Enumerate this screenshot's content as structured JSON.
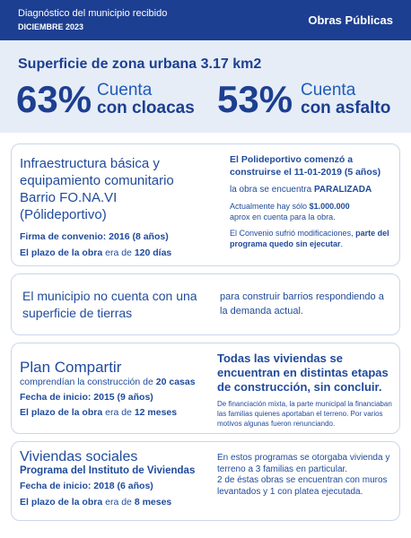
{
  "header": {
    "title": "Diagnóstico del municipio recibido",
    "date": "DICIEMBRE 2023",
    "department": "Obras Públicas"
  },
  "summary": {
    "surface": "Superficie de zona urbana 3.17 km2",
    "stats": [
      {
        "value": "63%",
        "line1": "Cuenta",
        "line2": "con cloacas"
      },
      {
        "value": "53%",
        "line1": "Cuenta",
        "line2": "con asfalto"
      }
    ]
  },
  "cards": [
    {
      "left": {
        "title": [
          "Infraestructura básica y",
          "equipamiento comunitario",
          "Barrio FO.NA.VI",
          "(Pólideportivo)"
        ],
        "signed": "Firma de convenio: 2016 (8 años)",
        "term": [
          "El plazo de la obra",
          " era de ",
          "120 días"
        ]
      },
      "right": {
        "start": "El Polideportivo comenzó a construirse el 11-01-2019 (5 años)",
        "status": [
          "la obra se encuentra ",
          "PARALIZADA"
        ],
        "funds": [
          "Actualmente hay sólo ",
          "$1.000.000",
          "aprox en cuenta para la obra."
        ],
        "change": [
          "El Convenio sufrió modificaciones, ",
          "parte del programa quedo sin ejecutar",
          "."
        ]
      }
    },
    {
      "left": {
        "text": "El municipio no cuenta con una superficie de tierras"
      },
      "right": {
        "text": "para construir barrios respondiendo a la demanda actual."
      }
    },
    {
      "left": {
        "title": "Plan Compartir",
        "subtitle": [
          "comprendían la construcción de ",
          "20 casas"
        ],
        "start": "Fecha de inicio: 2015 (9 años)",
        "term": [
          "El plazo de la obra",
          " era de ",
          "12 meses"
        ]
      },
      "right": {
        "headline": "Todas las viviendas se encuentran en distintas etapas de construcción, sin concluir.",
        "note": "De financiación mixta, la parte municipal la financiaban las familias quienes aportaban el terreno. Por varios motivos algunas fueron renunciando."
      }
    },
    {
      "left": {
        "title": "Viviendas sociales",
        "subtitle": "Programa del Instituto de Viviendas",
        "start": "Fecha de inicio: 2018 (6 años)",
        "term": [
          "El plazo de la obra",
          " era de ",
          "8 meses"
        ]
      },
      "right": {
        "text1": "En estos programas se otorgaba vivienda y terreno a 3 familias en particular.",
        "text2": "2 de éstas obras se encuentran con muros levantados y 1 con platea ejecutada."
      }
    }
  ]
}
